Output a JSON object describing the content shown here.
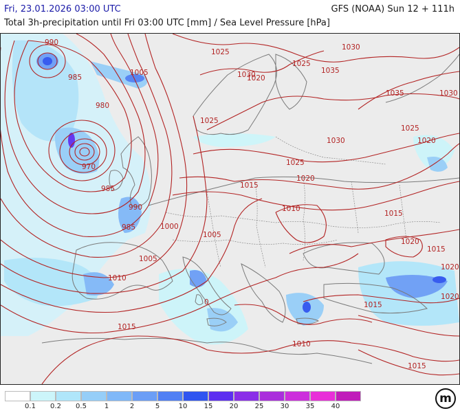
{
  "header": {
    "date": "Fri, 23.01.2026 03:00 UTC",
    "model": "GFS (NOAA) Sun 12 + 111h",
    "title": "Total 3h-precipitation until Fri 03:00 UTC [mm] / Sea Level Pressure [hPa]"
  },
  "colors": {
    "land": "#ececec",
    "isobar": "#b22222",
    "coastline": "#7a7a7a"
  },
  "pressure_lows": [
    {
      "label": "990"
    },
    {
      "label": "970"
    },
    {
      "label": "985"
    },
    {
      "label": "980"
    }
  ],
  "isobar_labels": [
    {
      "id": "l990",
      "text": "990"
    },
    {
      "id": "l985a",
      "text": "985"
    },
    {
      "id": "l980",
      "text": "980"
    },
    {
      "id": "l970",
      "text": "970"
    },
    {
      "id": "l985b",
      "text": "985"
    },
    {
      "id": "l990b",
      "text": "990"
    },
    {
      "id": "l985c",
      "text": "985"
    },
    {
      "id": "l1000",
      "text": "1000"
    },
    {
      "id": "l1005a",
      "text": "1005"
    },
    {
      "id": "l1005b",
      "text": "1005"
    },
    {
      "id": "l1005c",
      "text": "1005"
    },
    {
      "id": "l1010a",
      "text": "1010"
    },
    {
      "id": "l1010b",
      "text": "1010"
    },
    {
      "id": "l1010c",
      "text": "1010"
    },
    {
      "id": "l1015a",
      "text": "1015"
    },
    {
      "id": "l1015b",
      "text": "1015"
    },
    {
      "id": "l1015c",
      "text": "1015"
    },
    {
      "id": "l1015d",
      "text": "1015"
    },
    {
      "id": "l1015e",
      "text": "1015"
    },
    {
      "id": "l1015f",
      "text": "1015"
    },
    {
      "id": "l1020a",
      "text": "1020"
    },
    {
      "id": "l1020b",
      "text": "1020"
    },
    {
      "id": "l1020c",
      "text": "1020"
    },
    {
      "id": "l1020d",
      "text": "1020"
    },
    {
      "id": "l1020e",
      "text": "1020"
    },
    {
      "id": "l1020f",
      "text": "1020"
    },
    {
      "id": "l1025a",
      "text": "1025"
    },
    {
      "id": "l1025b",
      "text": "1025"
    },
    {
      "id": "l1025c",
      "text": "1025"
    },
    {
      "id": "l1025d",
      "text": "1025"
    },
    {
      "id": "l1025e",
      "text": "1025"
    },
    {
      "id": "l1030a",
      "text": "1030"
    },
    {
      "id": "l1030b",
      "text": "1030"
    },
    {
      "id": "l1030c",
      "text": "1030"
    },
    {
      "id": "l1030d",
      "text": "1030"
    },
    {
      "id": "l1035a",
      "text": "1035"
    },
    {
      "id": "l1035b",
      "text": "1035"
    },
    {
      "id": "l0",
      "text": "0"
    }
  ],
  "legend": {
    "unit": "mm",
    "colors": [
      "#ffffff",
      "#ccf5fa",
      "#b0e6fa",
      "#96cef8",
      "#80b8f8",
      "#6b9ef6",
      "#5080f4",
      "#2f55f0",
      "#5d2ff0",
      "#8a2fe8",
      "#aa2fdc",
      "#cc2fdc",
      "#e82fd8",
      "#c01cba"
    ],
    "ticks": [
      "0.1",
      "0.2",
      "0.5",
      "1",
      "2",
      "5",
      "10",
      "15",
      "20",
      "25",
      "30",
      "35",
      "40"
    ]
  },
  "logo": {
    "text": "m"
  }
}
